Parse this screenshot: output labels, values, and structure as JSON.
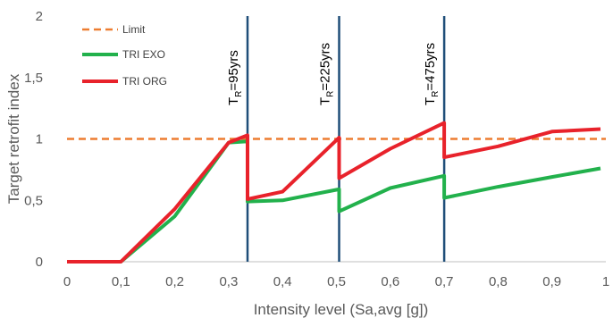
{
  "chart_data": {
    "type": "line",
    "xlabel": "Intensity level (Sa,avg [g])",
    "ylabel": "Target retrofit index",
    "xlim": [
      0,
      1
    ],
    "ylim": [
      0,
      2
    ],
    "xticks": [
      "0",
      "0,1",
      "0,2",
      "0,3",
      "0,4",
      "0,5",
      "0,6",
      "0,7",
      "0,8",
      "0,9",
      "1"
    ],
    "yticks": [
      "0",
      "0,5",
      "1",
      "1,5",
      "2"
    ],
    "grid": false,
    "legend_position": "top-left",
    "series": [
      {
        "name": "Limit",
        "color": "#ED7D31",
        "style": "dashed",
        "x": [
          0,
          1
        ],
        "y": [
          1,
          1
        ]
      },
      {
        "name": "TRI EXO",
        "color": "#22B14C",
        "style": "solid",
        "x": [
          0,
          0.1,
          0.2,
          0.3,
          0.335,
          0.335,
          0.4,
          0.505,
          0.505,
          0.6,
          0.7,
          0.7,
          0.8,
          0.9,
          0.99
        ],
        "y": [
          0,
          0,
          0.37,
          0.97,
          0.98,
          0.49,
          0.5,
          0.59,
          0.41,
          0.6,
          0.7,
          0.52,
          0.61,
          0.69,
          0.76
        ]
      },
      {
        "name": "TRI ORG",
        "color": "#E8222B",
        "style": "solid",
        "x": [
          0,
          0.1,
          0.2,
          0.3,
          0.335,
          0.335,
          0.4,
          0.505,
          0.505,
          0.6,
          0.7,
          0.7,
          0.8,
          0.9,
          0.99
        ],
        "y": [
          0,
          0,
          0.43,
          0.97,
          1.03,
          0.51,
          0.57,
          1.01,
          0.68,
          0.92,
          1.13,
          0.85,
          0.94,
          1.06,
          1.08
        ]
      }
    ],
    "vlines": [
      {
        "x": 0.335,
        "label_main": "T",
        "label_sub": "R",
        "label_rest": "=95yrs",
        "color": "#1F4E79"
      },
      {
        "x": 0.505,
        "label_main": "T",
        "label_sub": "R",
        "label_rest": "=225yrs",
        "color": "#1F4E79"
      },
      {
        "x": 0.7,
        "label_main": "T",
        "label_sub": "R",
        "label_rest": "=475yrs",
        "color": "#1F4E79"
      }
    ]
  }
}
